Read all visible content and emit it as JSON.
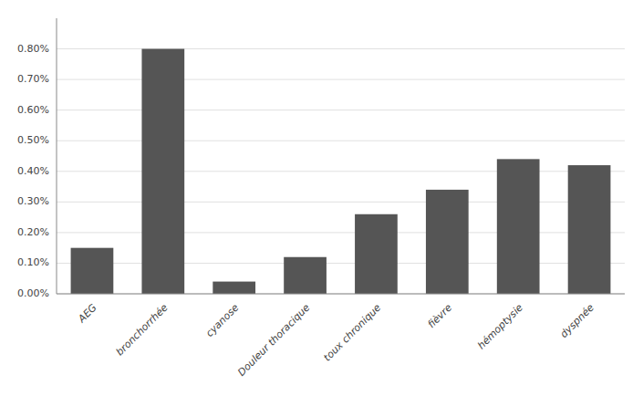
{
  "chart_data": {
    "type": "bar",
    "categories": [
      "AEG",
      "bronchorrhée",
      "cyanose",
      "Douleur thoracique",
      "toux chronique",
      "fièvre",
      "hémoptysie",
      "dyspnée"
    ],
    "values": [
      0.0015,
      0.008,
      0.0004,
      0.0012,
      0.0026,
      0.0034,
      0.0044,
      0.0042
    ],
    "color": "#555555",
    "ylim": [
      0,
      0.009
    ],
    "yticks": [
      {
        "value": 0.0,
        "label": "0.00%"
      },
      {
        "value": 0.001,
        "label": "0.10%"
      },
      {
        "value": 0.002,
        "label": "0.20%"
      },
      {
        "value": 0.003,
        "label": "0.30%"
      },
      {
        "value": 0.004,
        "label": "0.40%"
      },
      {
        "value": 0.005,
        "label": "0.50%"
      },
      {
        "value": 0.006,
        "label": "0.60%"
      },
      {
        "value": 0.007,
        "label": "0.70%"
      },
      {
        "value": 0.008,
        "label": "0.80%"
      }
    ],
    "grid": true
  }
}
